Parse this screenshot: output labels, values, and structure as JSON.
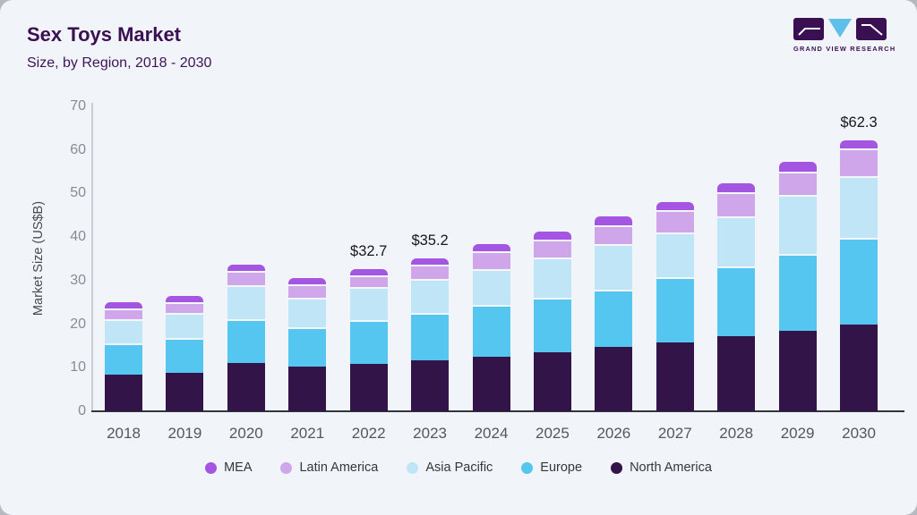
{
  "header": {
    "title": "Sex Toys Market",
    "subtitle": "Size, by Region, 2018 - 2030"
  },
  "logo": {
    "name": "grand-view-research-logo",
    "wordmark": "GRAND VIEW RESEARCH",
    "block_color": "#3b1053",
    "triangle_color": "#5cc0e8"
  },
  "colors": {
    "card_background": "#f1f5f9",
    "outer_background": "#b6b9bf",
    "axis_line": "#c9ced6",
    "x_axis_line": "#31363e",
    "tick_text": "#868c94",
    "year_text": "#53575e",
    "annotation_text": "#15171c",
    "title_text": "#3b1053"
  },
  "chart_data": {
    "type": "bar",
    "variant": "stacked-vertical",
    "title": "Sex Toys Market",
    "subtitle": "Size, by Region, 2018 - 2030",
    "xlabel": "",
    "ylabel": "Market Size (US$B)",
    "ylim": [
      0,
      70
    ],
    "yticks": [
      0,
      10,
      20,
      30,
      40,
      50,
      60,
      70
    ],
    "grid": false,
    "legend_position": "bottom",
    "categories": [
      "2018",
      "2019",
      "2020",
      "2021",
      "2022",
      "2023",
      "2024",
      "2025",
      "2026",
      "2027",
      "2028",
      "2029",
      "2030"
    ],
    "series": [
      {
        "name": "North America",
        "color": "#321449",
        "values": [
          8.4,
          8.9,
          11.1,
          10.2,
          10.9,
          11.7,
          12.6,
          13.6,
          14.7,
          15.9,
          17.2,
          18.4,
          20.0
        ]
      },
      {
        "name": "Europe",
        "color": "#54c6ef",
        "values": [
          7.2,
          7.9,
          10.1,
          9.0,
          10.0,
          10.9,
          11.8,
          12.5,
          13.3,
          14.8,
          16.1,
          17.8,
          19.9
        ]
      },
      {
        "name": "Asia Pacific",
        "color": "#bfe5f6",
        "values": [
          5.6,
          5.7,
          7.8,
          6.8,
          7.6,
          7.8,
          8.2,
          9.2,
          10.3,
          10.4,
          11.5,
          13.4,
          14.1
        ]
      },
      {
        "name": "Latin America",
        "color": "#cfa6e9",
        "values": [
          2.4,
          2.6,
          3.2,
          3.1,
          2.7,
          3.2,
          4.1,
          4.1,
          4.5,
          5.0,
          5.4,
          5.5,
          6.3
        ]
      },
      {
        "name": "MEA",
        "color": "#a455e2",
        "values": [
          1.4,
          1.4,
          1.4,
          1.4,
          1.5,
          1.6,
          1.7,
          1.8,
          1.9,
          2.0,
          2.2,
          2.2,
          2.0
        ]
      }
    ],
    "totals": [
      25.0,
      26.5,
      33.6,
      30.5,
      32.7,
      35.2,
      38.4,
      41.2,
      44.7,
      48.1,
      52.4,
      57.3,
      62.3
    ],
    "annotations": [
      {
        "category": "2022",
        "label": "$32.7"
      },
      {
        "category": "2023",
        "label": "$35.2"
      },
      {
        "category": "2030",
        "label": "$62.3"
      }
    ],
    "legend_order": [
      "MEA",
      "Latin America",
      "Asia Pacific",
      "Europe",
      "North America"
    ]
  }
}
